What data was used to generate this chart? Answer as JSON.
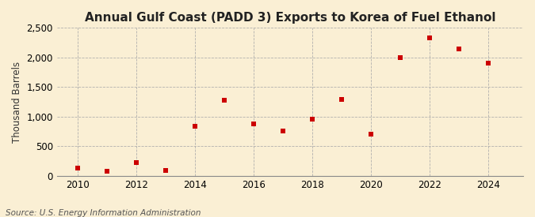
{
  "title": "Annual Gulf Coast (PADD 3) Exports to Korea of Fuel Ethanol",
  "ylabel": "Thousand Barrels",
  "source": "Source: U.S. Energy Information Administration",
  "years": [
    2010,
    2011,
    2012,
    2013,
    2014,
    2015,
    2016,
    2017,
    2018,
    2019,
    2020,
    2021,
    2022,
    2023,
    2024
  ],
  "values": [
    130,
    75,
    230,
    95,
    840,
    1280,
    880,
    760,
    960,
    1290,
    700,
    2000,
    2330,
    2150,
    1900
  ],
  "marker_color": "#cc0000",
  "marker_size": 5,
  "background_color": "#faefd4",
  "grid_color": "#aaaaaa",
  "ylim": [
    0,
    2500
  ],
  "yticks": [
    0,
    500,
    1000,
    1500,
    2000,
    2500
  ],
  "xlim": [
    2009.3,
    2025.2
  ],
  "xticks": [
    2010,
    2012,
    2014,
    2016,
    2018,
    2020,
    2022,
    2024
  ],
  "title_fontsize": 11,
  "label_fontsize": 8.5,
  "source_fontsize": 7.5
}
